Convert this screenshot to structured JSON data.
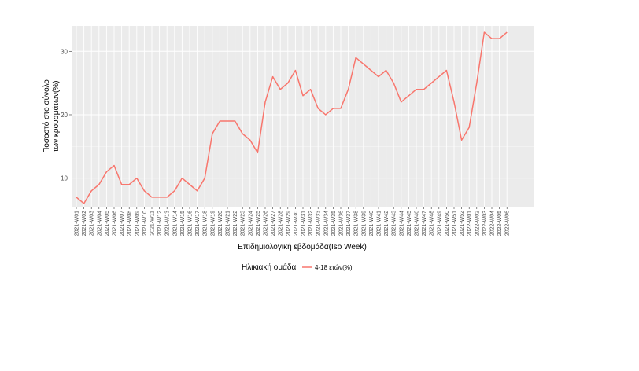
{
  "chart_data": {
    "type": "line",
    "title": "",
    "xlabel": "Επιδημιολογική εβδομάδα(Iso Week)",
    "ylabel_lines": [
      "Ποσοστό στο σύνολο",
      "των κρουσμάτων(%)"
    ],
    "ylim": [
      5.5,
      34
    ],
    "yticks": [
      10,
      20,
      30
    ],
    "grid": true,
    "legend_position": "bottom",
    "legend_title": "Ηλικιακή ομάδα",
    "colors": {
      "series": "#f8766d",
      "panel": "#ebebeb",
      "grid_major": "#ffffff",
      "grid_minor": "#f5f5f5"
    },
    "categories": [
      "2021-W01",
      "2021-W02",
      "2021-W03",
      "2021-W04",
      "2021-W05",
      "2021-W06",
      "2021-W07",
      "2021-W08",
      "2021-W09",
      "2021-W10",
      "2021-W11",
      "2021-W12",
      "2021-W13",
      "2021-W14",
      "2021-W15",
      "2021-W16",
      "2021-W17",
      "2021-W18",
      "2021-W19",
      "2021-W20",
      "2021-W21",
      "2021-W22",
      "2021-W23",
      "2021-W24",
      "2021-W25",
      "2021-W26",
      "2021-W27",
      "2021-W28",
      "2021-W29",
      "2021-W30",
      "2021-W31",
      "2021-W32",
      "2021-W33",
      "2021-W34",
      "2021-W35",
      "2021-W36",
      "2021-W37",
      "2021-W38",
      "2021-W39",
      "2021-W40",
      "2021-W41",
      "2021-W42",
      "2021-W43",
      "2021-W44",
      "2021-W45",
      "2021-W46",
      "2021-W47",
      "2021-W48",
      "2021-W49",
      "2021-W50",
      "2021-W51",
      "2021-W52",
      "2022-W01",
      "2022-W02",
      "2022-W03",
      "2022-W04",
      "2022-W05",
      "2022-W06"
    ],
    "series": [
      {
        "name": "4-18 ετών(%)",
        "values": [
          7,
          6,
          8,
          9,
          11,
          12,
          9,
          9,
          10,
          8,
          7,
          7,
          7,
          8,
          10,
          9,
          8,
          10,
          17,
          19,
          19,
          19,
          17,
          16,
          14,
          22,
          26,
          24,
          25,
          27,
          23,
          24,
          21,
          20,
          21,
          21,
          24,
          29,
          28,
          27,
          26,
          27,
          25,
          22,
          23,
          24,
          24,
          25,
          26,
          27,
          22,
          16,
          18,
          25,
          33,
          32,
          32,
          33
        ]
      }
    ]
  }
}
